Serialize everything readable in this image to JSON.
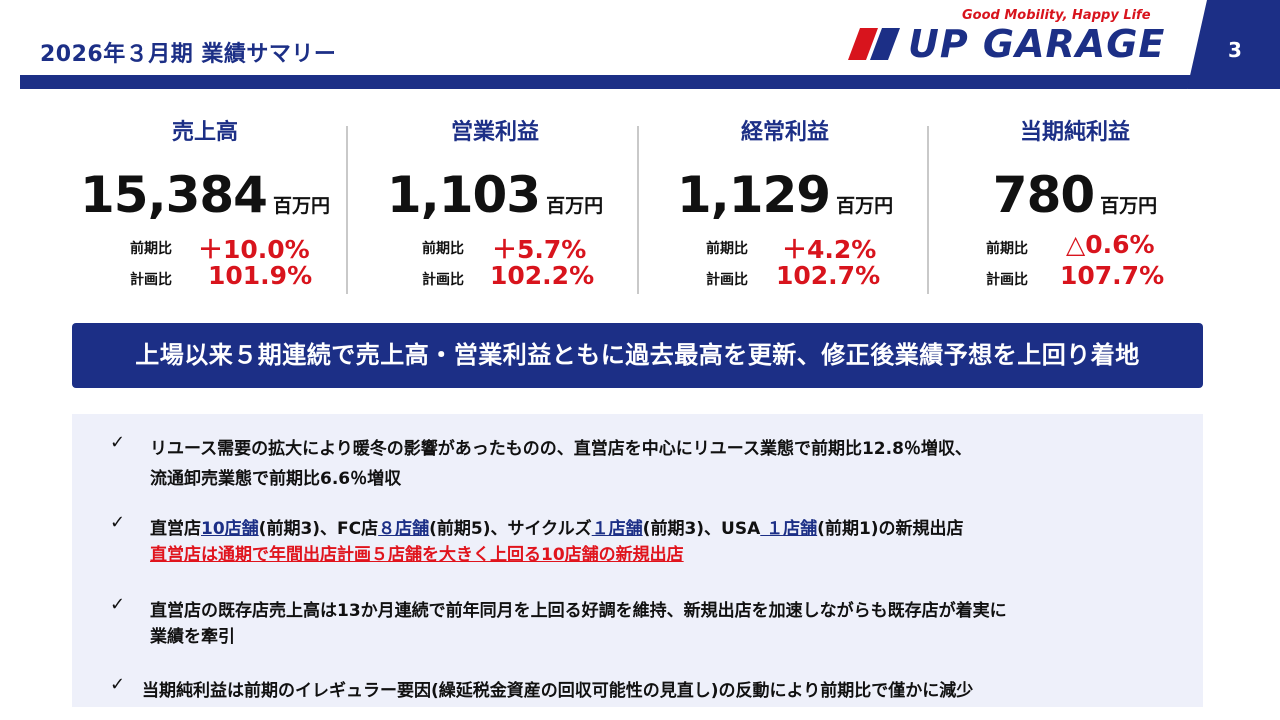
{
  "header": {
    "title": "2026年３月期 業績サマリー",
    "tagline": "Good Mobility, Happy Life",
    "logo_text": "UP GARAGE",
    "page_number": "3",
    "colors": {
      "navy": "#1c2f86",
      "red": "#d8141d"
    }
  },
  "kpis": [
    {
      "label": "売上高",
      "value": "15,384",
      "unit": "百万円",
      "yoy_label": "前期比",
      "yoy_value": "＋10.0%",
      "plan_label": "計画比",
      "plan_value": "101.9%"
    },
    {
      "label": "営業利益",
      "value": "1,103",
      "unit": "百万円",
      "yoy_label": "前期比",
      "yoy_value": "＋5.7%",
      "plan_label": "計画比",
      "plan_value": "102.2%"
    },
    {
      "label": "経常利益",
      "value": "1,129",
      "unit": "百万円",
      "yoy_label": "前期比",
      "yoy_value": "＋4.2%",
      "plan_label": "計画比",
      "plan_value": "102.7%"
    },
    {
      "label": "当期純利益",
      "value": "780",
      "unit": "百万円",
      "yoy_label": "前期比",
      "yoy_value": "△0.6%",
      "plan_label": "計画比",
      "plan_value": "107.7%"
    }
  ],
  "banner": "上場以来５期連続で売上高・営業利益ともに過去最高を更新、修正後業績予想を上回り着地",
  "points": {
    "check": "✓",
    "p1": {
      "line1": "リユース需要の拡大により暖冬の影響があったものの、直営店を中心にリユース業態で前期比12.8％増収、",
      "line2": "流通卸売業態で前期比6.6％増収"
    },
    "p2": {
      "seg_a": "直営店",
      "seg_b": "10店舗",
      "seg_c": "(前期3)、FC店",
      "seg_d": "８店舗",
      "seg_e": "(前期5)、サイクルズ",
      "seg_f": "１店舗",
      "seg_g": "(前期3)、USA",
      "seg_h": " １店舗",
      "seg_i": "(前期1)の新規出店",
      "line2": "直営店は通期で年間出店計画５店舗を大きく上回る10店舗の新規出店"
    },
    "p3": {
      "line1": "直営店の既存店売上高は13か月連続で前年同月を上回る好調を維持、新規出店を加速しながらも既存店が着実に",
      "line2": "業績を牽引"
    },
    "p4": {
      "line1": "当期純利益は前期のイレギュラー要因(繰延税金資産の回収可能性の見直し)の反動により前期比で僅かに減少"
    }
  }
}
